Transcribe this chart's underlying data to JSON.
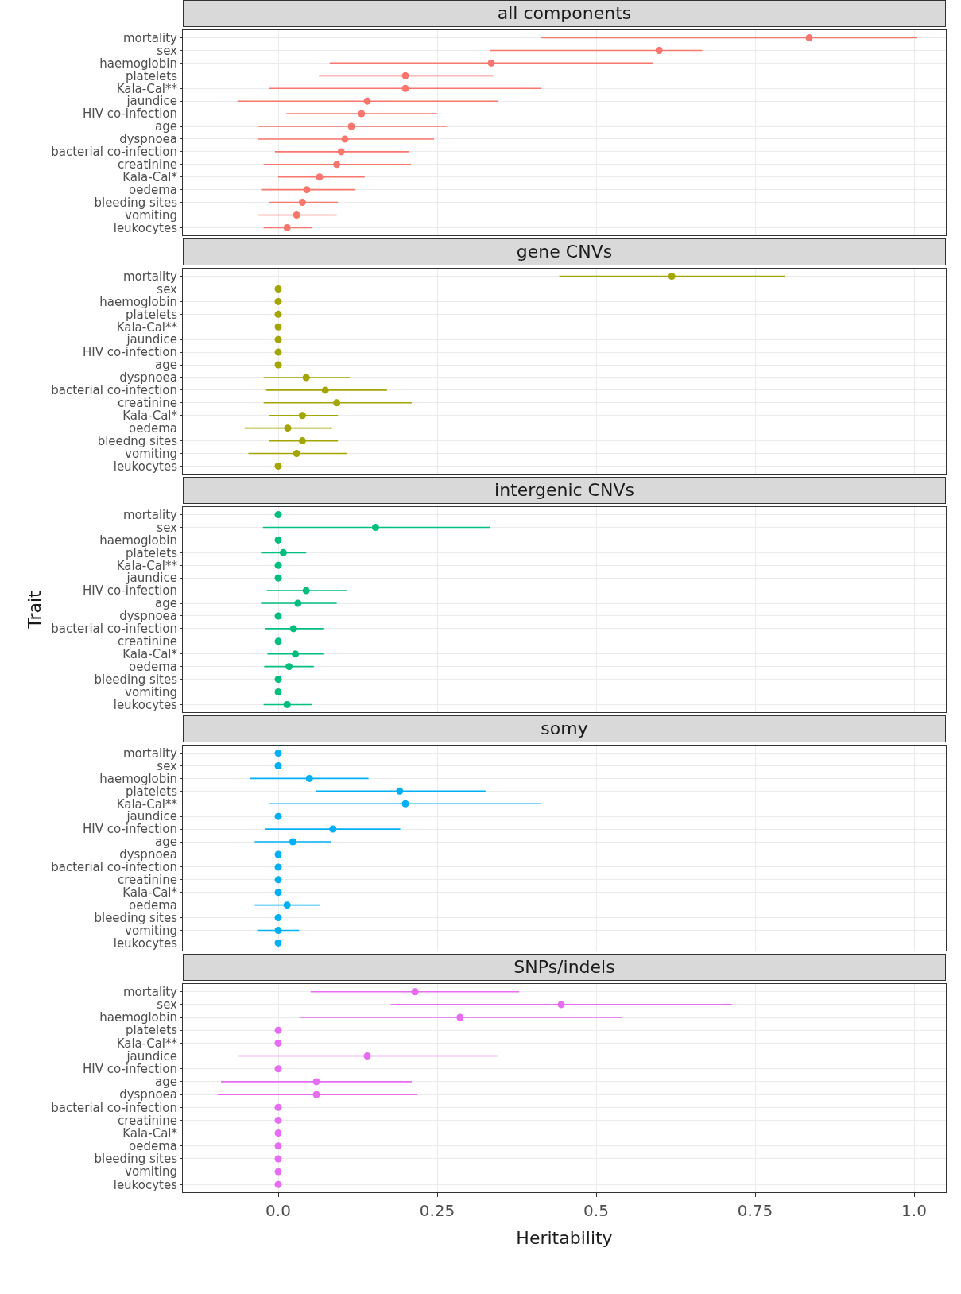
{
  "chart_data": [
    {
      "type": "scatter",
      "orientation": "horizontal",
      "title": "all components",
      "color": "#f8766d",
      "marker": "circle",
      "grid": true,
      "tick_labels": "y",
      "xlim": [
        -0.15,
        1.05
      ],
      "xticks": [
        {
          "value": 0,
          "label": null
        },
        {
          "value": 0.25,
          "label": null
        },
        {
          "value": 0.5,
          "label": null
        },
        {
          "value": 0.75,
          "label": null
        },
        {
          "value": 1,
          "label": null
        }
      ],
      "categories": [
        "mortality",
        "sex",
        "haemoglobin",
        "platelets",
        "Kala-Cal**",
        "jaundice",
        "HIV co-infection",
        "age",
        "dyspnoea",
        "bacterial co-infection",
        "creatinine",
        "Kala-Cal*",
        "oedema",
        "bleeding sites",
        "vomiting",
        "leukocytes"
      ],
      "values": [
        0.835,
        0.599,
        0.335,
        0.2,
        0.2,
        0.14,
        0.131,
        0.115,
        0.105,
        0.099,
        0.092,
        0.065,
        0.045,
        0.038,
        0.029,
        0.014
      ],
      "errors": [
        [
          0.413,
          1.005
        ],
        [
          0.333,
          0.667
        ],
        [
          0.081,
          0.59
        ],
        [
          0.064,
          0.338
        ],
        [
          -0.014,
          0.414
        ],
        [
          -0.064,
          0.345
        ],
        [
          0.013,
          0.25
        ],
        [
          -0.032,
          0.265
        ],
        [
          -0.032,
          0.245
        ],
        [
          -0.005,
          0.206
        ],
        [
          -0.023,
          0.209
        ],
        [
          0,
          0.136
        ],
        [
          -0.027,
          0.121
        ],
        [
          -0.014,
          0.094
        ],
        [
          -0.031,
          0.092
        ],
        [
          -0.023,
          0.053
        ]
      ]
    },
    {
      "type": "scatter",
      "orientation": "horizontal",
      "title": "gene CNVs",
      "color": "#a3a500",
      "marker": "circle",
      "grid": true,
      "tick_labels": "y",
      "xlim": [
        -0.15,
        1.05
      ],
      "xticks": [
        {
          "value": 0,
          "label": null
        },
        {
          "value": 0.25,
          "label": null
        },
        {
          "value": 0.5,
          "label": null
        },
        {
          "value": 0.75,
          "label": null
        },
        {
          "value": 1,
          "label": null
        }
      ],
      "categories": [
        "mortality",
        "sex",
        "haemoglobin",
        "platelets",
        "Kala-Cal**",
        "jaundice",
        "HIV co-infection",
        "age",
        "dyspnoea",
        "bacterial co-infection",
        "creatinine",
        "Kala-Cal*",
        "oedema",
        "bleedng sites",
        "vomiting",
        "leukocytes"
      ],
      "values": [
        0.619,
        0,
        0,
        0,
        0,
        0,
        0,
        0,
        0.044,
        0.074,
        0.092,
        0.038,
        0.015,
        0.038,
        0.029,
        0
      ],
      "errors": [
        [
          0.442,
          0.797
        ],
        null,
        null,
        null,
        null,
        null,
        null,
        null,
        [
          -0.023,
          0.113
        ],
        [
          -0.019,
          0.171
        ],
        [
          -0.023,
          0.21
        ],
        [
          -0.014,
          0.094
        ],
        [
          -0.053,
          0.085
        ],
        [
          -0.014,
          0.094
        ],
        [
          -0.047,
          0.108
        ],
        null
      ]
    },
    {
      "type": "scatter",
      "orientation": "horizontal",
      "title": "intergenic CNVs",
      "ylabel": "Trait",
      "color": "#00bf7d",
      "marker": "circle",
      "grid": true,
      "tick_labels": "y",
      "xlim": [
        -0.15,
        1.05
      ],
      "xticks": [
        {
          "value": 0,
          "label": null
        },
        {
          "value": 0.25,
          "label": null
        },
        {
          "value": 0.5,
          "label": null
        },
        {
          "value": 0.75,
          "label": null
        },
        {
          "value": 1,
          "label": null
        }
      ],
      "categories": [
        "mortality",
        "sex",
        "haemoglobin",
        "platelets",
        "Kala-Cal**",
        "jaundice",
        "HIV co-infection",
        "age",
        "dyspnoea",
        "bacterial co-infection",
        "creatinine",
        "Kala-Cal*",
        "oedema",
        "bleeding sites",
        "vomiting",
        "leukocytes"
      ],
      "values": [
        0,
        0.153,
        0,
        0.008,
        0,
        0,
        0.044,
        0.031,
        0,
        0.024,
        0,
        0.027,
        0.017,
        0,
        0,
        0.014
      ],
      "errors": [
        null,
        [
          -0.024,
          0.333
        ],
        null,
        [
          -0.027,
          0.044
        ],
        null,
        null,
        [
          -0.018,
          0.109
        ],
        [
          -0.027,
          0.092
        ],
        null,
        [
          -0.021,
          0.071
        ],
        null,
        [
          -0.017,
          0.071
        ],
        [
          -0.022,
          0.056
        ],
        null,
        null,
        [
          -0.023,
          0.053
        ]
      ]
    },
    {
      "type": "scatter",
      "orientation": "horizontal",
      "title": "somy",
      "color": "#00b0f6",
      "marker": "circle",
      "grid": true,
      "tick_labels": "y",
      "xlim": [
        -0.15,
        1.05
      ],
      "xticks": [
        {
          "value": 0,
          "label": null
        },
        {
          "value": 0.25,
          "label": null
        },
        {
          "value": 0.5,
          "label": null
        },
        {
          "value": 0.75,
          "label": null
        },
        {
          "value": 1,
          "label": null
        }
      ],
      "categories": [
        "mortality",
        "sex",
        "haemoglobin",
        "platelets",
        "Kala-Cal**",
        "jaundice",
        "HIV co-infection",
        "age",
        "dyspnoea",
        "bacterial co-infection",
        "creatinine",
        "Kala-Cal*",
        "oedema",
        "bleeding sites",
        "vomiting",
        "leukocytes"
      ],
      "values": [
        0,
        0,
        0.049,
        0.191,
        0.2,
        0,
        0.086,
        0.023,
        0,
        0,
        0,
        0,
        0.014,
        0,
        0,
        0
      ],
      "errors": [
        null,
        null,
        [
          -0.044,
          0.142
        ],
        [
          0.059,
          0.326
        ],
        [
          -0.014,
          0.414
        ],
        null,
        [
          -0.021,
          0.192
        ],
        [
          -0.037,
          0.083
        ],
        null,
        null,
        null,
        null,
        [
          -0.037,
          0.065
        ],
        null,
        [
          -0.033,
          0.033
        ],
        null
      ]
    },
    {
      "type": "scatter",
      "orientation": "horizontal",
      "title": "SNPs/indels",
      "xlabel": "Heritability",
      "color": "#e76bf3",
      "marker": "circle",
      "grid": true,
      "xlim": [
        -0.15,
        1.05
      ],
      "xticks": [
        {
          "value": 0,
          "label": "0.0"
        },
        0.25,
        {
          "value": 0.5,
          "label": "0.5"
        },
        0.75,
        {
          "value": 1,
          "label": "1.0"
        }
      ],
      "categories": [
        "mortality",
        "sex",
        "haemoglobin",
        "platelets",
        "Kala-Cal**",
        "jaundice",
        "HIV co-infection",
        "age",
        "dyspnoea",
        "bacterial co-infection",
        "creatinine",
        "Kala-Cal*",
        "oedema",
        "bleeding sites",
        "vomiting",
        "leukocytes"
      ],
      "values": [
        0.215,
        0.445,
        0.286,
        0,
        0,
        0.14,
        0,
        0.06,
        0.06,
        0,
        0,
        0,
        0,
        0,
        0,
        0
      ],
      "errors": [
        [
          0.051,
          0.379
        ],
        [
          0.177,
          0.714
        ],
        [
          0.033,
          0.54
        ],
        null,
        null,
        [
          -0.064,
          0.345
        ],
        null,
        [
          -0.09,
          0.21
        ],
        [
          -0.095,
          0.218
        ],
        null,
        null,
        null,
        null,
        null,
        null,
        null
      ]
    }
  ]
}
